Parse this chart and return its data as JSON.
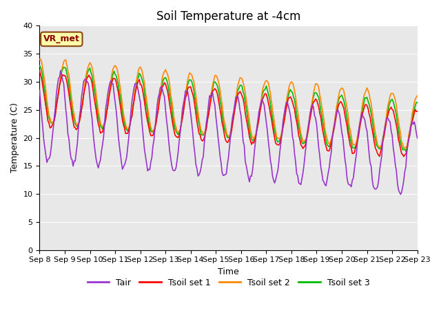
{
  "title": "Soil Temperature at -4cm",
  "xlabel": "Time",
  "ylabel": "Temperature (C)",
  "ylim": [
    0,
    40
  ],
  "yticks": [
    0,
    5,
    10,
    15,
    20,
    25,
    30,
    35,
    40
  ],
  "xtick_labels": [
    "Sep 8",
    "Sep 9",
    "Sep 10",
    "Sep 11",
    "Sep 12",
    "Sep 13",
    "Sep 14",
    "Sep 15",
    "Sep 16",
    "Sep 17",
    "Sep 18",
    "Sep 19",
    "Sep 20",
    "Sep 21",
    "Sep 22",
    "Sep 23"
  ],
  "annotation_text": "VR_met",
  "line_colors": {
    "Tair": "#9933CC",
    "Tsoil1": "#FF0000",
    "Tsoil2": "#FF8800",
    "Tsoil3": "#00BB00"
  },
  "line_widths": {
    "Tair": 1.2,
    "Tsoil1": 1.2,
    "Tsoil2": 1.2,
    "Tsoil3": 1.2
  },
  "legend_labels": [
    "Tair",
    "Tsoil set 1",
    "Tsoil set 2",
    "Tsoil set 3"
  ],
  "bg_color": "#E8E8E8",
  "fig_bg_color": "#FFFFFF",
  "title_fontsize": 12,
  "axis_label_fontsize": 9,
  "tick_fontsize": 8,
  "legend_fontsize": 9,
  "annotation_fontsize": 9
}
